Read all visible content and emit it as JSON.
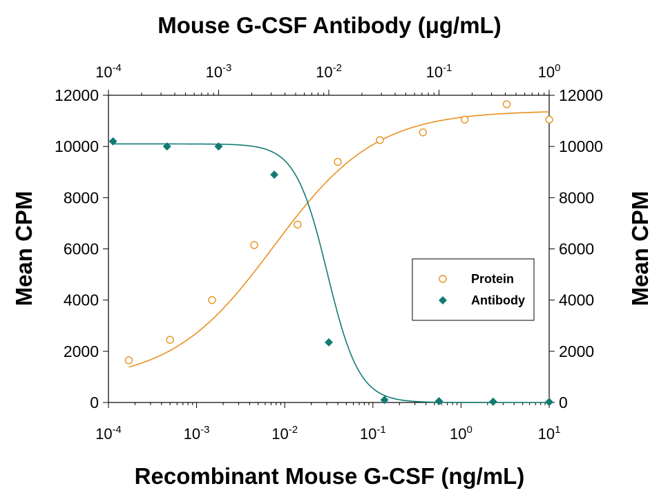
{
  "chart_data": {
    "type": "scatter",
    "top_axis_title": "Mouse G-CSF Antibody (μg/mL)",
    "xlabel": "Recombinant Mouse G-CSF (ng/mL)",
    "ylabel_left": "Mean CPM",
    "ylabel_right": "Mean CPM",
    "x_scale": "log",
    "xlim": [
      0.0001,
      10
    ],
    "x_ticks": [
      {
        "base": "10",
        "exp": "-4",
        "value": 0.0001
      },
      {
        "base": "10",
        "exp": "-3",
        "value": 0.001
      },
      {
        "base": "10",
        "exp": "-2",
        "value": 0.01
      },
      {
        "base": "10",
        "exp": "-1",
        "value": 0.1
      },
      {
        "base": "10",
        "exp": "0",
        "value": 1
      },
      {
        "base": "10",
        "exp": "1",
        "value": 10
      }
    ],
    "top_x_scale": "log",
    "top_xlim": [
      0.0001,
      1
    ],
    "top_x_ticks": [
      {
        "base": "10",
        "exp": "-4",
        "value": 0.0001
      },
      {
        "base": "10",
        "exp": "-3",
        "value": 0.001
      },
      {
        "base": "10",
        "exp": "-2",
        "value": 0.01
      },
      {
        "base": "10",
        "exp": "-1",
        "value": 0.1
      },
      {
        "base": "10",
        "exp": "0",
        "value": 1
      }
    ],
    "ylim": [
      0,
      12000
    ],
    "y_ticks": [
      "0",
      "2000",
      "4000",
      "6000",
      "8000",
      "10000",
      "12000"
    ],
    "legend_position": "center-right",
    "series": [
      {
        "name": "Protein",
        "axis": "bottom",
        "marker": "open-circle",
        "color": "#E8901E",
        "x": [
          0.00017,
          0.0005,
          0.0015,
          0.0045,
          0.014,
          0.04,
          0.12,
          0.37,
          1.1,
          3.3,
          10
        ],
        "y": [
          1650,
          2450,
          4000,
          6150,
          6950,
          9400,
          10250,
          10550,
          11050,
          11650,
          11050
        ]
      },
      {
        "name": "Antibody",
        "axis": "top",
        "marker": "filled-diamond",
        "color": "#127A73",
        "x": [
          0.00011,
          0.00034,
          0.001,
          0.0032,
          0.01,
          0.032,
          0.1,
          0.31,
          1
        ],
        "y": [
          10200,
          10000,
          10000,
          8900,
          2350,
          100,
          50,
          30,
          20
        ]
      }
    ],
    "fit_curves": [
      {
        "series": "Protein",
        "axis": "bottom",
        "bottom": 800,
        "top": 11400,
        "ec50": 0.0075,
        "hill": 0.75
      },
      {
        "series": "Antibody",
        "axis": "top",
        "bottom": 0,
        "top": 10100,
        "ec50": 0.0097,
        "hill": 3.0
      }
    ]
  }
}
